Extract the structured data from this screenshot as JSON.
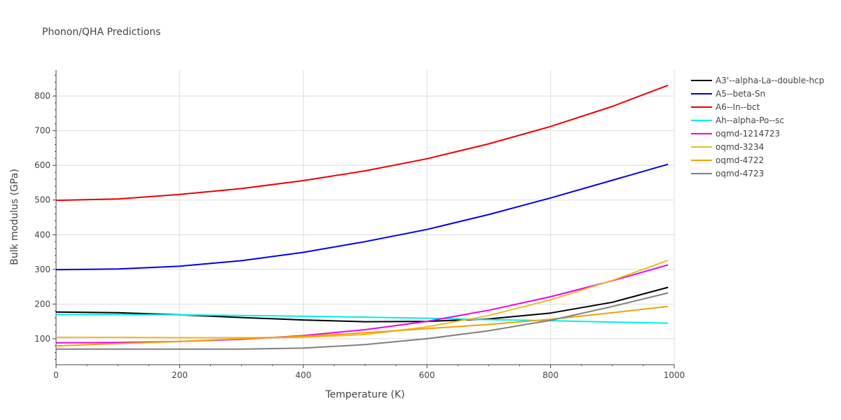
{
  "chart_data": {
    "type": "line",
    "title": "Phonon/QHA Predictions",
    "xlabel": "Temperature (K)",
    "ylabel": "Bulk modulus (GPa)",
    "xlim": [
      0,
      1000
    ],
    "ylim": [
      25,
      875
    ],
    "xticks": [
      0,
      200,
      400,
      600,
      800,
      1000
    ],
    "yticks": [
      100,
      200,
      300,
      400,
      500,
      600,
      700,
      800
    ],
    "grid": true,
    "legend_position": "right",
    "series": [
      {
        "name": "A3'--alpha-La--double-hcp",
        "color": "#000000",
        "x": [
          0,
          100,
          200,
          300,
          400,
          500,
          600,
          700,
          800,
          900,
          990
        ],
        "y": [
          177,
          175,
          169,
          161,
          154,
          149,
          150,
          157,
          174,
          205,
          248
        ]
      },
      {
        "name": "A5--beta-Sn",
        "color": "#0000ee",
        "x": [
          0,
          100,
          200,
          300,
          400,
          500,
          600,
          700,
          800,
          900,
          990
        ],
        "y": [
          299,
          301,
          309,
          325,
          349,
          380,
          415,
          458,
          506,
          557,
          603
        ]
      },
      {
        "name": "A6--In--bct",
        "color": "#ee0000",
        "x": [
          0,
          100,
          200,
          300,
          400,
          500,
          600,
          700,
          800,
          900,
          990
        ],
        "y": [
          499,
          503,
          516,
          533,
          556,
          584,
          619,
          662,
          712,
          770,
          831
        ]
      },
      {
        "name": "Ah--alpha-Po--sc",
        "color": "#00eeee",
        "x": [
          0,
          100,
          200,
          300,
          400,
          500,
          600,
          700,
          800,
          900,
          990
        ],
        "y": [
          170,
          170,
          169,
          167,
          165,
          162,
          159,
          155,
          152,
          148,
          145
        ]
      },
      {
        "name": "oqmd-1214723",
        "color": "#ee00ee",
        "x": [
          0,
          100,
          200,
          300,
          400,
          500,
          600,
          700,
          800,
          900,
          990
        ],
        "y": [
          88,
          89,
          92,
          98,
          109,
          126,
          150,
          182,
          221,
          267,
          313
        ]
      },
      {
        "name": "oqmd-3234",
        "color": "#eebb22",
        "x": [
          0,
          100,
          200,
          300,
          400,
          500,
          600,
          700,
          800,
          900,
          990
        ],
        "y": [
          104,
          104,
          103,
          103,
          104,
          112,
          134,
          167,
          212,
          268,
          326
        ]
      },
      {
        "name": "oqmd-4722",
        "color": "#f5a100",
        "x": [
          0,
          100,
          200,
          300,
          400,
          500,
          600,
          700,
          800,
          900,
          990
        ],
        "y": [
          79,
          86,
          92,
          100,
          107,
          117,
          129,
          141,
          156,
          175,
          193
        ]
      },
      {
        "name": "oqmd-4723",
        "color": "#808080",
        "x": [
          0,
          100,
          200,
          300,
          400,
          500,
          600,
          700,
          800,
          900,
          990
        ],
        "y": [
          70,
          70,
          70,
          70,
          73,
          83,
          100,
          123,
          153,
          193,
          232
        ]
      }
    ]
  }
}
